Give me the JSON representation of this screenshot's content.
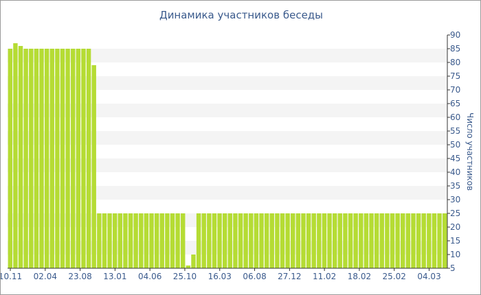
{
  "chart_data": {
    "type": "bar",
    "title": "Динамика участников беседы",
    "ylabel": "Число участников",
    "xlabel": "",
    "y_axis_side": "right",
    "ylim": [
      5,
      90
    ],
    "y_ticks": [
      5,
      10,
      15,
      20,
      25,
      30,
      35,
      40,
      45,
      50,
      55,
      60,
      65,
      70,
      75,
      80,
      85,
      90
    ],
    "x_tick_labels": [
      "10.11",
      "02.04",
      "23.08",
      "13.01",
      "04.06",
      "25.10",
      "16.03",
      "06.08",
      "27.12",
      "11.02",
      "18.02",
      "25.02",
      "04.03"
    ],
    "grid": "alternating horizontal bands",
    "colors": {
      "bar": "#b5dc34",
      "band": "#f4f4f4",
      "text": "#3a5a8c",
      "axis": "#333333"
    },
    "values": [
      85,
      87,
      86,
      85,
      85,
      85,
      85,
      85,
      85,
      85,
      85,
      85,
      85,
      85,
      85,
      85,
      79,
      25,
      25,
      25,
      25,
      25,
      25,
      25,
      25,
      25,
      25,
      25,
      25,
      25,
      25,
      25,
      25,
      25,
      6,
      10,
      25,
      25,
      25,
      25,
      25,
      25,
      25,
      25,
      25,
      25,
      25,
      25,
      25,
      25,
      25,
      25,
      25,
      25,
      25,
      25,
      25,
      25,
      25,
      25,
      25,
      25,
      25,
      25,
      25,
      25,
      25,
      25,
      25,
      25,
      25,
      25,
      25,
      25,
      25,
      25,
      25,
      25,
      25,
      25,
      25,
      25,
      25,
      25
    ]
  }
}
